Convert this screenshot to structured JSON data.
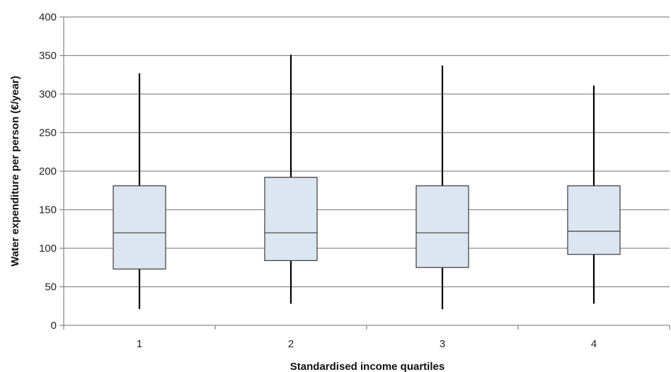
{
  "chart_data": {
    "type": "box",
    "title": "",
    "xlabel": "Standardised income quartiles",
    "ylabel": "Water expenditure per person (€/year)",
    "ylim": [
      0,
      400
    ],
    "yticks": [
      0,
      50,
      100,
      150,
      200,
      250,
      300,
      350,
      400
    ],
    "grid": "horizontal",
    "legend": "none",
    "categories": [
      "1",
      "2",
      "3",
      "4"
    ],
    "boxes": [
      {
        "category": "1",
        "min": 21,
        "q1": 73,
        "median": 120,
        "q3": 181,
        "max": 327
      },
      {
        "category": "2",
        "min": 28,
        "q1": 84,
        "median": 120,
        "q3": 192,
        "max": 351
      },
      {
        "category": "3",
        "min": 21,
        "q1": 75,
        "median": 120,
        "q3": 181,
        "max": 337
      },
      {
        "category": "4",
        "min": 28,
        "q1": 92,
        "median": 122,
        "q3": 181,
        "max": 311
      }
    ],
    "colors": {
      "box_fill": "#dce6f1",
      "box_stroke": "#3a3a3a",
      "whisker": "#000000",
      "grid": "#8c8c8c",
      "axis": "#8c8c8c"
    }
  }
}
